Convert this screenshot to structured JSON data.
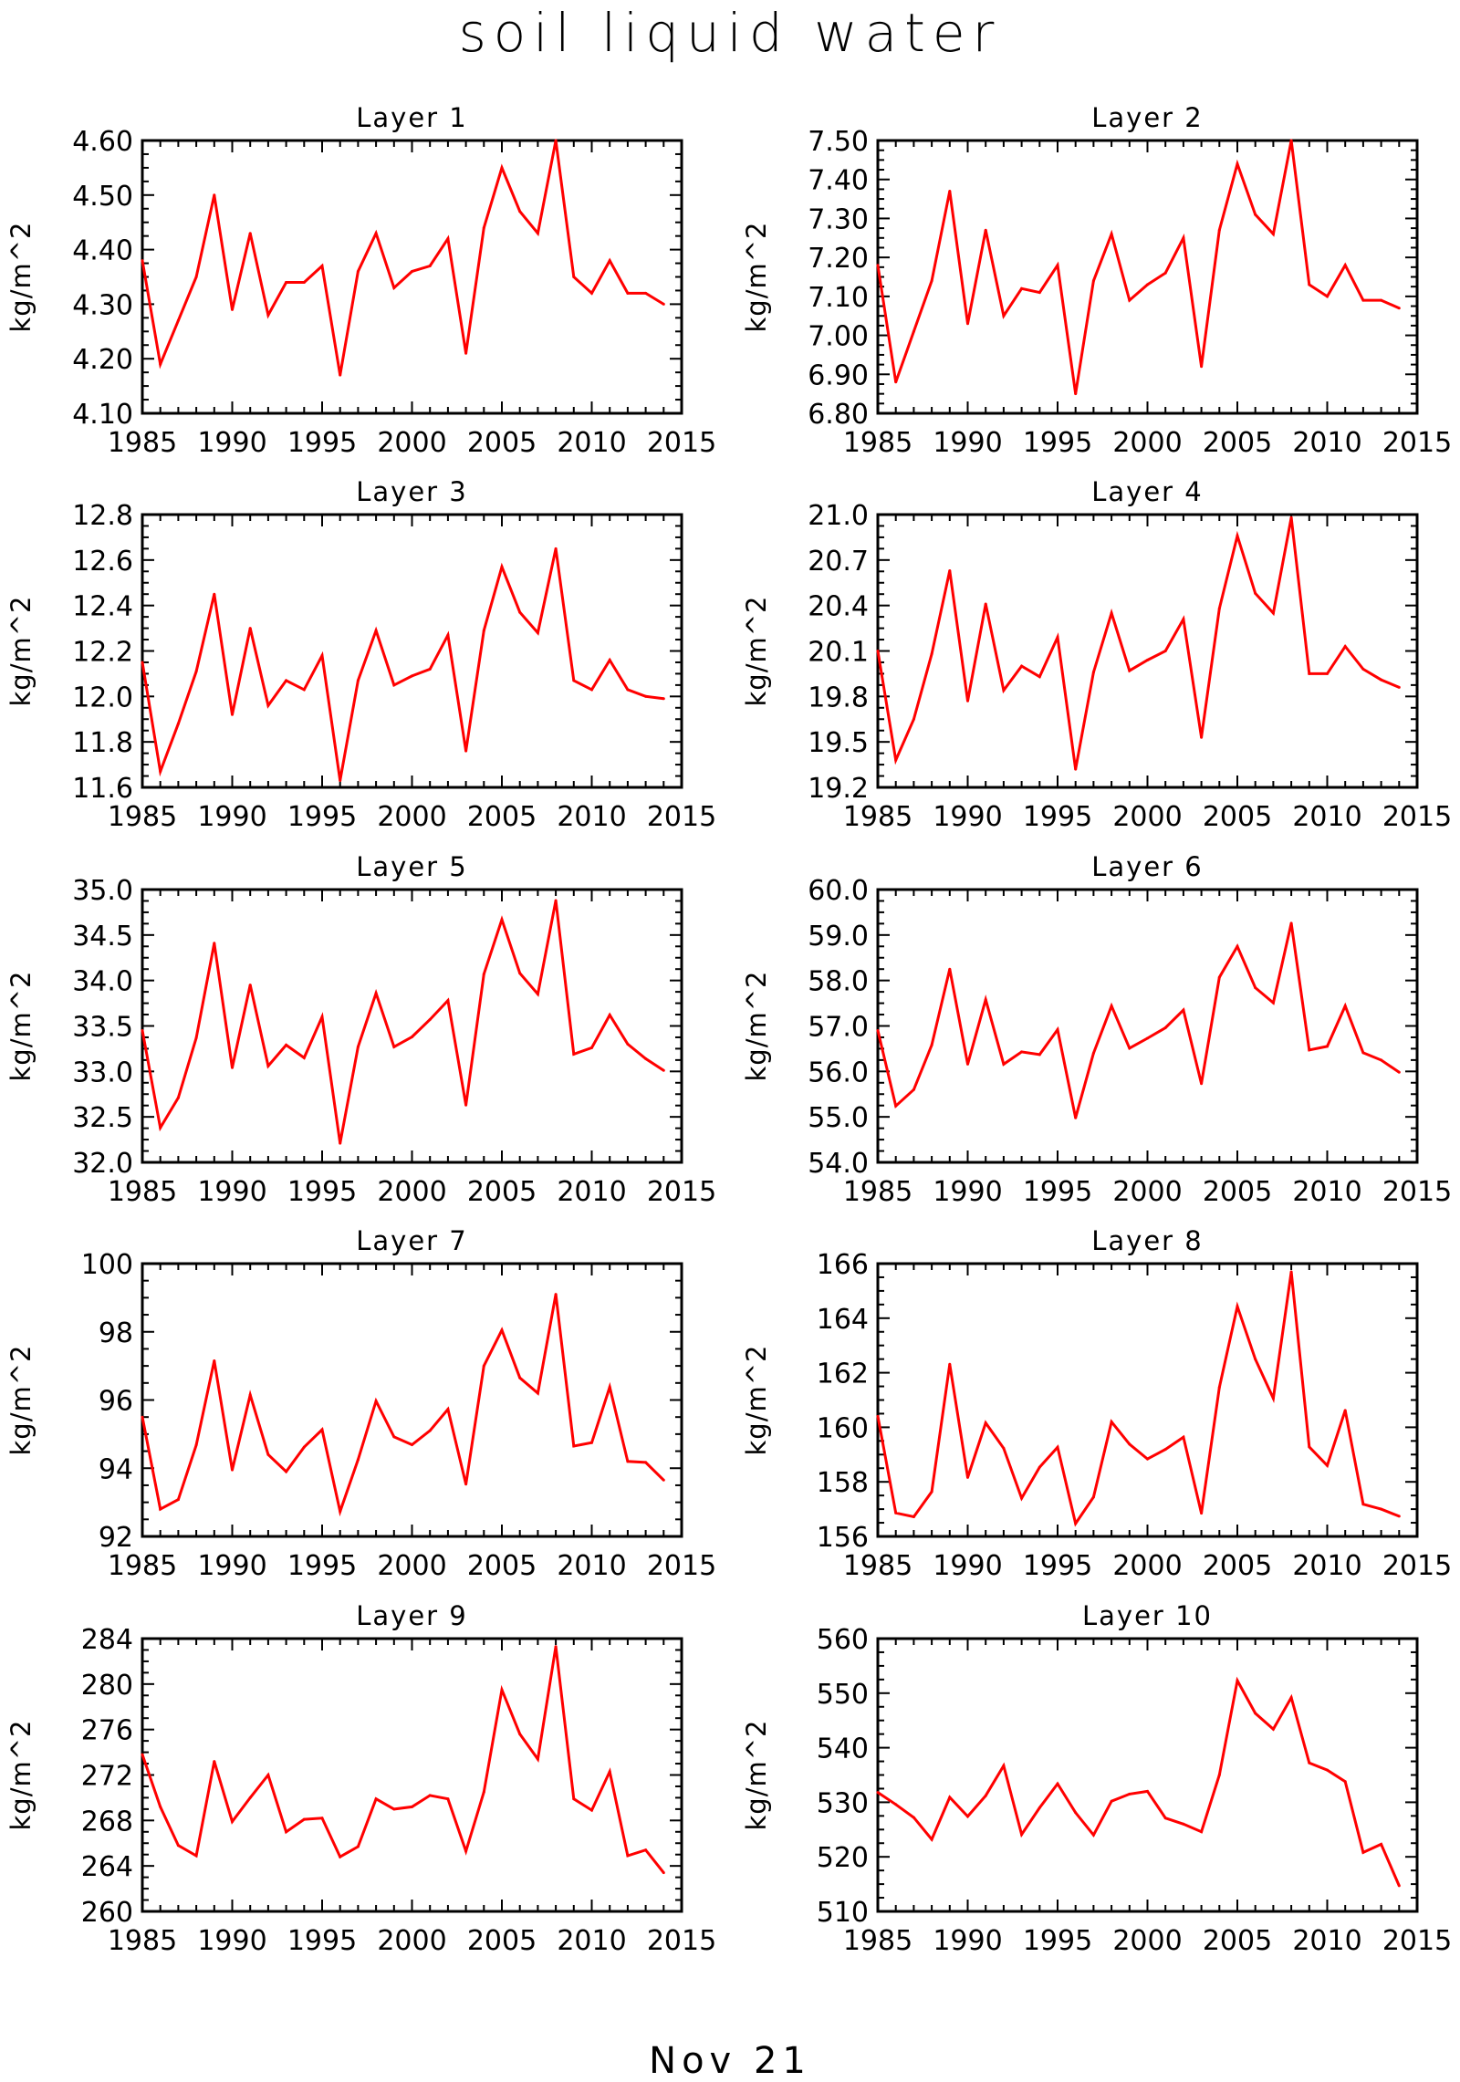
{
  "title": "soil liquid water",
  "footer": "Nov 21",
  "chart_data": [
    {
      "type": "line",
      "title": "Layer 1",
      "ylabel": "kg/m^2",
      "x": [
        1985,
        1986,
        1987,
        1988,
        1989,
        1990,
        1991,
        1992,
        1993,
        1994,
        1995,
        1996,
        1997,
        1998,
        1999,
        2000,
        2001,
        2002,
        2003,
        2004,
        2005,
        2006,
        2007,
        2008,
        2009,
        2010,
        2011,
        2012,
        2013,
        2014
      ],
      "values": [
        4.38,
        4.19,
        4.27,
        4.35,
        4.5,
        4.29,
        4.43,
        4.28,
        4.34,
        4.34,
        4.37,
        4.17,
        4.36,
        4.43,
        4.33,
        4.36,
        4.37,
        4.42,
        4.21,
        4.44,
        4.55,
        4.47,
        4.43,
        4.6,
        4.35,
        4.32,
        4.38,
        4.32,
        4.32,
        4.3
      ],
      "xlim": [
        1985,
        2015
      ],
      "ylim": [
        4.1,
        4.6
      ],
      "yticks": [
        4.1,
        4.2,
        4.3,
        4.4,
        4.5,
        4.6
      ],
      "ytick_labels": [
        "4.10",
        "4.20",
        "4.30",
        "4.40",
        "4.50",
        "4.60"
      ],
      "xticks": [
        1985,
        1990,
        1995,
        2000,
        2005,
        2010,
        2015
      ],
      "color": "#ff0000"
    },
    {
      "type": "line",
      "title": "Layer 2",
      "ylabel": "kg/m^2",
      "x": [
        1985,
        1986,
        1987,
        1988,
        1989,
        1990,
        1991,
        1992,
        1993,
        1994,
        1995,
        1996,
        1997,
        1998,
        1999,
        2000,
        2001,
        2002,
        2003,
        2004,
        2005,
        2006,
        2007,
        2008,
        2009,
        2010,
        2011,
        2012,
        2013,
        2014
      ],
      "values": [
        7.18,
        6.88,
        7.01,
        7.14,
        7.37,
        7.03,
        7.27,
        7.05,
        7.12,
        7.11,
        7.18,
        6.85,
        7.14,
        7.26,
        7.09,
        7.13,
        7.16,
        7.25,
        6.92,
        7.27,
        7.44,
        7.31,
        7.26,
        7.5,
        7.13,
        7.1,
        7.18,
        7.09,
        7.09,
        7.07
      ],
      "xlim": [
        1985,
        2015
      ],
      "ylim": [
        6.8,
        7.5
      ],
      "yticks": [
        6.8,
        6.9,
        7.0,
        7.1,
        7.2,
        7.3,
        7.4,
        7.5
      ],
      "ytick_labels": [
        "6.80",
        "6.90",
        "7.00",
        "7.10",
        "7.20",
        "7.30",
        "7.40",
        "7.50"
      ],
      "xticks": [
        1985,
        1990,
        1995,
        2000,
        2005,
        2010,
        2015
      ],
      "color": "#ff0000"
    },
    {
      "type": "line",
      "title": "Layer 3",
      "ylabel": "kg/m^2",
      "x": [
        1985,
        1986,
        1987,
        1988,
        1989,
        1990,
        1991,
        1992,
        1993,
        1994,
        1995,
        1996,
        1997,
        1998,
        1999,
        2000,
        2001,
        2002,
        2003,
        2004,
        2005,
        2006,
        2007,
        2008,
        2009,
        2010,
        2011,
        2012,
        2013,
        2014
      ],
      "values": [
        12.15,
        11.67,
        11.88,
        12.11,
        12.45,
        11.92,
        12.3,
        11.96,
        12.07,
        12.03,
        12.18,
        11.63,
        12.07,
        12.29,
        12.05,
        12.09,
        12.12,
        12.27,
        11.76,
        12.29,
        12.57,
        12.37,
        12.28,
        12.65,
        12.07,
        12.03,
        12.16,
        12.03,
        12.0,
        11.99
      ],
      "xlim": [
        1985,
        2015
      ],
      "ylim": [
        11.6,
        12.8
      ],
      "yticks": [
        11.6,
        11.8,
        12.0,
        12.2,
        12.4,
        12.6,
        12.8
      ],
      "ytick_labels": [
        "11.6",
        "11.8",
        "12.0",
        "12.2",
        "12.4",
        "12.6",
        "12.8"
      ],
      "xticks": [
        1985,
        1990,
        1995,
        2000,
        2005,
        2010,
        2015
      ],
      "color": "#ff0000"
    },
    {
      "type": "line",
      "title": "Layer 4",
      "ylabel": "kg/m^2",
      "x": [
        1985,
        1986,
        1987,
        1988,
        1989,
        1990,
        1991,
        1992,
        1993,
        1994,
        1995,
        1996,
        1997,
        1998,
        1999,
        2000,
        2001,
        2002,
        2003,
        2004,
        2005,
        2006,
        2007,
        2008,
        2009,
        2010,
        2011,
        2012,
        2013,
        2014
      ],
      "values": [
        20.1,
        19.38,
        19.65,
        20.08,
        20.63,
        19.77,
        20.41,
        19.84,
        20.0,
        19.93,
        20.19,
        19.32,
        19.96,
        20.35,
        19.97,
        20.04,
        20.1,
        20.31,
        19.53,
        20.38,
        20.86,
        20.48,
        20.35,
        20.98,
        19.95,
        19.95,
        20.13,
        19.98,
        19.91,
        19.86
      ],
      "xlim": [
        1985,
        2015
      ],
      "ylim": [
        19.2,
        21.0
      ],
      "yticks": [
        19.2,
        19.5,
        19.8,
        20.1,
        20.4,
        20.7,
        21.0
      ],
      "ytick_labels": [
        "19.2",
        "19.5",
        "19.8",
        "20.1",
        "20.4",
        "20.7",
        "21.0"
      ],
      "xticks": [
        1985,
        1990,
        1995,
        2000,
        2005,
        2010,
        2015
      ],
      "color": "#ff0000"
    },
    {
      "type": "line",
      "title": "Layer 5",
      "ylabel": "kg/m^2",
      "x": [
        1985,
        1986,
        1987,
        1988,
        1989,
        1990,
        1991,
        1992,
        1993,
        1994,
        1995,
        1996,
        1997,
        1998,
        1999,
        2000,
        2001,
        2002,
        2003,
        2004,
        2005,
        2006,
        2007,
        2008,
        2009,
        2010,
        2011,
        2012,
        2013,
        2014
      ],
      "values": [
        33.45,
        32.38,
        32.71,
        33.37,
        34.41,
        33.04,
        33.95,
        33.06,
        33.29,
        33.15,
        33.6,
        32.21,
        33.27,
        33.86,
        33.27,
        33.38,
        33.57,
        33.78,
        32.63,
        34.07,
        34.67,
        34.08,
        33.85,
        34.88,
        33.19,
        33.26,
        33.62,
        33.3,
        33.14,
        33.01
      ],
      "xlim": [
        1985,
        2015
      ],
      "ylim": [
        32.0,
        35.0
      ],
      "yticks": [
        32.0,
        32.5,
        33.0,
        33.5,
        34.0,
        34.5,
        35.0
      ],
      "ytick_labels": [
        "32.0",
        "32.5",
        "33.0",
        "33.5",
        "34.0",
        "34.5",
        "35.0"
      ],
      "xticks": [
        1985,
        1990,
        1995,
        2000,
        2005,
        2010,
        2015
      ],
      "color": "#ff0000"
    },
    {
      "type": "line",
      "title": "Layer 6",
      "ylabel": "kg/m^2",
      "x": [
        1985,
        1986,
        1987,
        1988,
        1989,
        1990,
        1991,
        1992,
        1993,
        1994,
        1995,
        1996,
        1997,
        1998,
        1999,
        2000,
        2001,
        2002,
        2003,
        2004,
        2005,
        2006,
        2007,
        2008,
        2009,
        2010,
        2011,
        2012,
        2013,
        2014
      ],
      "values": [
        56.9,
        55.24,
        55.6,
        56.58,
        58.25,
        56.16,
        57.58,
        56.16,
        56.43,
        56.37,
        56.92,
        54.98,
        56.4,
        57.44,
        56.51,
        56.73,
        56.96,
        57.35,
        55.73,
        58.07,
        58.75,
        57.84,
        57.51,
        59.26,
        56.47,
        56.55,
        57.44,
        56.41,
        56.25,
        55.98
      ],
      "xlim": [
        1985,
        2015
      ],
      "ylim": [
        54.0,
        60.0
      ],
      "yticks": [
        54,
        55,
        56,
        57,
        58,
        59,
        60
      ],
      "ytick_labels": [
        "54.0",
        "55.0",
        "56.0",
        "57.0",
        "58.0",
        "59.0",
        "60.0"
      ],
      "xticks": [
        1985,
        1990,
        1995,
        2000,
        2005,
        2010,
        2015
      ],
      "color": "#ff0000"
    },
    {
      "type": "line",
      "title": "Layer 7",
      "ylabel": "kg/m^2",
      "x": [
        1985,
        1986,
        1987,
        1988,
        1989,
        1990,
        1991,
        1992,
        1993,
        1994,
        1995,
        1996,
        1997,
        1998,
        1999,
        2000,
        2001,
        2002,
        2003,
        2004,
        2005,
        2006,
        2007,
        2008,
        2009,
        2010,
        2011,
        2012,
        2013,
        2014
      ],
      "values": [
        95.5,
        92.8,
        93.08,
        94.68,
        97.15,
        93.95,
        96.15,
        94.4,
        93.9,
        94.62,
        95.13,
        92.73,
        94.25,
        95.97,
        94.92,
        94.69,
        95.1,
        95.73,
        93.53,
        97.0,
        98.05,
        96.65,
        96.2,
        99.1,
        94.65,
        94.75,
        96.38,
        94.2,
        94.17,
        93.65
      ],
      "xlim": [
        1985,
        2015
      ],
      "ylim": [
        92,
        100
      ],
      "yticks": [
        92,
        94,
        96,
        98,
        100
      ],
      "ytick_labels": [
        "92",
        "94",
        "96",
        "98",
        "100"
      ],
      "xticks": [
        1985,
        1990,
        1995,
        2000,
        2005,
        2010,
        2015
      ],
      "color": "#ff0000"
    },
    {
      "type": "line",
      "title": "Layer 8",
      "ylabel": "kg/m^2",
      "x": [
        1985,
        1986,
        1987,
        1988,
        1989,
        1990,
        1991,
        1992,
        1993,
        1994,
        1995,
        1996,
        1997,
        1998,
        1999,
        2000,
        2001,
        2002,
        2003,
        2004,
        2005,
        2006,
        2007,
        2008,
        2009,
        2010,
        2011,
        2012,
        2013,
        2014
      ],
      "values": [
        160.4,
        156.86,
        156.72,
        157.64,
        162.31,
        158.16,
        160.16,
        159.23,
        157.4,
        158.54,
        159.27,
        156.47,
        157.44,
        160.2,
        159.38,
        158.84,
        159.19,
        159.64,
        156.85,
        161.46,
        164.43,
        162.5,
        161.06,
        165.7,
        159.28,
        158.6,
        160.62,
        157.18,
        157.0,
        156.74
      ],
      "xlim": [
        1985,
        2015
      ],
      "ylim": [
        156,
        166
      ],
      "yticks": [
        156,
        158,
        160,
        162,
        164,
        166
      ],
      "ytick_labels": [
        "156",
        "158",
        "160",
        "162",
        "164",
        "166"
      ],
      "xticks": [
        1985,
        1990,
        1995,
        2000,
        2005,
        2010,
        2015
      ],
      "color": "#ff0000"
    },
    {
      "type": "line",
      "title": "Layer 9",
      "ylabel": "kg/m^2",
      "x": [
        1985,
        1986,
        1987,
        1988,
        1989,
        1990,
        1991,
        1992,
        1993,
        1994,
        1995,
        1996,
        1997,
        1998,
        1999,
        2000,
        2001,
        2002,
        2003,
        2004,
        2005,
        2006,
        2007,
        2008,
        2009,
        2010,
        2011,
        2012,
        2013,
        2014
      ],
      "values": [
        273.8,
        269.2,
        265.8,
        264.9,
        273.2,
        267.9,
        270.0,
        272.0,
        267.0,
        268.1,
        268.2,
        264.8,
        265.7,
        269.9,
        269.0,
        269.2,
        270.2,
        269.9,
        265.3,
        270.5,
        279.5,
        275.6,
        273.4,
        283.3,
        269.9,
        268.9,
        272.3,
        264.9,
        265.4,
        263.4
      ],
      "xlim": [
        1985,
        2015
      ],
      "ylim": [
        260,
        284
      ],
      "yticks": [
        260,
        264,
        268,
        272,
        276,
        280,
        284
      ],
      "ytick_labels": [
        "260",
        "264",
        "268",
        "272",
        "276",
        "280",
        "284"
      ],
      "xticks": [
        1985,
        1990,
        1995,
        2000,
        2005,
        2010,
        2015
      ],
      "color": "#ff0000"
    },
    {
      "type": "line",
      "title": "Layer 10",
      "ylabel": "kg/m^2",
      "x": [
        1985,
        1986,
        1987,
        1988,
        1989,
        1990,
        1991,
        1992,
        1993,
        1994,
        1995,
        1996,
        1997,
        1998,
        1999,
        2000,
        2001,
        2002,
        2003,
        2004,
        2005,
        2006,
        2007,
        2008,
        2009,
        2010,
        2011,
        2012,
        2013,
        2014
      ],
      "values": [
        531.8,
        529.6,
        527.2,
        523.2,
        530.9,
        527.4,
        531.2,
        536.7,
        524.1,
        529.0,
        533.4,
        528.1,
        524.0,
        530.2,
        531.5,
        532.0,
        527.1,
        526.0,
        524.6,
        535.0,
        552.3,
        546.3,
        543.4,
        549.2,
        537.2,
        535.9,
        533.8,
        520.8,
        522.3,
        514.7
      ],
      "xlim": [
        1985,
        2015
      ],
      "ylim": [
        510,
        560
      ],
      "yticks": [
        510,
        520,
        530,
        540,
        550,
        560
      ],
      "ytick_labels": [
        "510",
        "520",
        "530",
        "540",
        "550",
        "560"
      ],
      "xticks": [
        1985,
        1990,
        1995,
        2000,
        2005,
        2010,
        2015
      ],
      "color": "#ff0000"
    }
  ]
}
